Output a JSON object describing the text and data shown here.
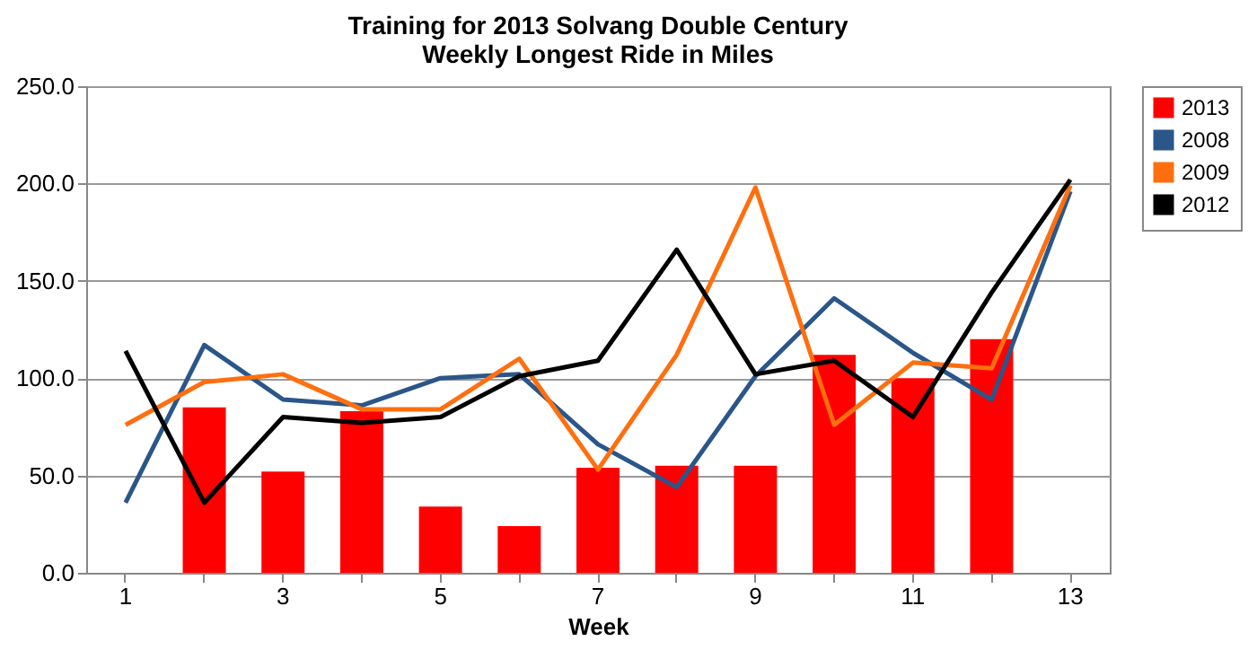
{
  "chart_data": {
    "type": "line",
    "title": [
      "Training for 2013 Solvang Double Century",
      "Weekly Longest Ride in Miles"
    ],
    "xlabel": "Week",
    "categories": [
      "1",
      null,
      "3",
      null,
      "5",
      null,
      "7",
      null,
      "9",
      null,
      "11",
      null,
      "13"
    ],
    "series": [
      {
        "name": "2013",
        "type": "bar",
        "color": "#ff0000",
        "values": [
          null,
          85,
          52,
          83,
          34,
          24,
          54,
          55,
          55,
          112,
          100,
          120,
          null
        ]
      },
      {
        "name": "2008",
        "color": "#2a5689",
        "values": [
          36,
          117,
          89,
          86,
          100,
          102,
          66,
          44,
          101,
          141,
          113,
          89,
          196
        ]
      },
      {
        "name": "2009",
        "color": "#ff6f0f",
        "values": [
          76,
          98,
          102,
          84,
          84,
          110,
          53,
          112,
          198,
          76,
          108,
          105,
          199
        ]
      },
      {
        "name": "2012",
        "color": "#000000",
        "values": [
          114,
          36,
          80,
          77,
          80,
          101,
          109,
          166,
          102,
          109,
          80,
          144,
          202
        ]
      }
    ],
    "ylim": [
      0,
      250
    ],
    "yticks": [
      {
        "value": 0,
        "label": "0.0"
      },
      {
        "value": 50,
        "label": "50.0"
      },
      {
        "value": 100,
        "label": "100.0"
      },
      {
        "value": 150,
        "label": "150.0"
      },
      {
        "value": 200,
        "label": "200.0"
      },
      {
        "value": 250,
        "label": "250.0"
      }
    ],
    "grid": "y",
    "legend": "right"
  }
}
